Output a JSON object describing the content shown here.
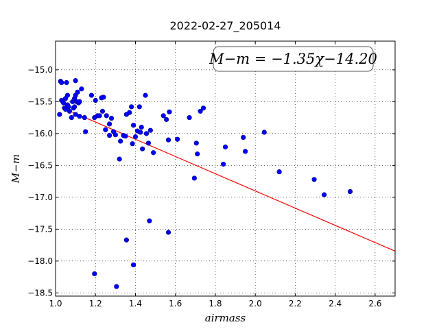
{
  "chart_data": {
    "type": "scatter",
    "title": "2022-02-27_205014",
    "xlabel": "airmass",
    "ylabel": "M−m",
    "xlim": [
      1.0,
      2.7
    ],
    "ylim": [
      -18.55,
      -14.55
    ],
    "y_inverted": true,
    "grid": true,
    "x_ticks": [
      1.0,
      1.2,
      1.4,
      1.6,
      1.8,
      2.0,
      2.2,
      2.4,
      2.6
    ],
    "x_tick_labels": [
      "1.0",
      "1.2",
      "1.4",
      "1.6",
      "1.8",
      "2.0",
      "2.2",
      "2.4",
      "2.6"
    ],
    "y_ticks": [
      -15.0,
      -15.5,
      -16.0,
      -16.5,
      -17.0,
      -17.5,
      -18.0,
      -18.5
    ],
    "y_tick_labels": [
      "−15.0",
      "−15.5",
      "−16.0",
      "−16.5",
      "−17.0",
      "−17.5",
      "−18.0",
      "−18.5"
    ],
    "annotation": "M−m = −1.35χ−14.20",
    "fit": {
      "slope": -1.35,
      "intercept": -14.2,
      "color": "#ff0000"
    },
    "marker_color": "#0000ff",
    "marker_edge_color": "#000080",
    "points": [
      [
        1.02,
        -15.7
      ],
      [
        1.025,
        -15.18
      ],
      [
        1.03,
        -15.2
      ],
      [
        1.03,
        -15.48
      ],
      [
        1.04,
        -15.52
      ],
      [
        1.045,
        -15.6
      ],
      [
        1.05,
        -15.45
      ],
      [
        1.05,
        -15.62
      ],
      [
        1.055,
        -15.2
      ],
      [
        1.06,
        -15.4
      ],
      [
        1.06,
        -15.55
      ],
      [
        1.065,
        -15.58
      ],
      [
        1.07,
        -15.65
      ],
      [
        1.08,
        -15.75
      ],
      [
        1.085,
        -15.5
      ],
      [
        1.09,
        -15.6
      ],
      [
        1.095,
        -15.45
      ],
      [
        1.095,
        -15.58
      ],
      [
        1.1,
        -15.17
      ],
      [
        1.1,
        -15.4
      ],
      [
        1.1,
        -15.7
      ],
      [
        1.105,
        -15.5
      ],
      [
        1.11,
        -15.35
      ],
      [
        1.115,
        -15.52
      ],
      [
        1.12,
        -15.5
      ],
      [
        1.12,
        -15.73
      ],
      [
        1.13,
        -15.3
      ],
      [
        1.145,
        -15.75
      ],
      [
        1.15,
        -15.97
      ],
      [
        1.18,
        -15.4
      ],
      [
        1.195,
        -15.75
      ],
      [
        1.2,
        -15.48
      ],
      [
        1.21,
        -15.72
      ],
      [
        1.22,
        -15.72
      ],
      [
        1.23,
        -15.44
      ],
      [
        1.235,
        -15.65
      ],
      [
        1.24,
        -15.43
      ],
      [
        1.25,
        -15.94
      ],
      [
        1.255,
        -15.72
      ],
      [
        1.27,
        -15.85
      ],
      [
        1.27,
        -16.03
      ],
      [
        1.28,
        -15.76
      ],
      [
        1.29,
        -15.97
      ],
      [
        1.3,
        -16.02
      ],
      [
        1.32,
        -16.4
      ],
      [
        1.325,
        -16.12
      ],
      [
        1.34,
        -16.03
      ],
      [
        1.35,
        -16.04
      ],
      [
        1.355,
        -15.7
      ],
      [
        1.37,
        -15.67
      ],
      [
        1.38,
        -15.58
      ],
      [
        1.385,
        -16.16
      ],
      [
        1.39,
        -15.87
      ],
      [
        1.4,
        -16.05
      ],
      [
        1.41,
        -15.96
      ],
      [
        1.42,
        -15.58
      ],
      [
        1.425,
        -15.98
      ],
      [
        1.43,
        -15.9
      ],
      [
        1.435,
        -16.24
      ],
      [
        1.45,
        -15.4
      ],
      [
        1.455,
        -16.0
      ],
      [
        1.465,
        -16.15
      ],
      [
        1.475,
        -15.95
      ],
      [
        1.49,
        -16.3
      ],
      [
        1.54,
        -15.72
      ],
      [
        1.555,
        -15.78
      ],
      [
        1.565,
        -16.1
      ],
      [
        1.57,
        -15.66
      ],
      [
        1.61,
        -16.09
      ],
      [
        1.67,
        -15.75
      ],
      [
        1.695,
        -16.7
      ],
      [
        1.705,
        -16.15
      ],
      [
        1.71,
        -16.32
      ],
      [
        1.725,
        -15.65
      ],
      [
        1.74,
        -15.6
      ],
      [
        1.84,
        -16.48
      ],
      [
        1.85,
        -16.21
      ],
      [
        1.94,
        -16.06
      ],
      [
        1.95,
        -16.28
      ],
      [
        2.045,
        -15.98
      ],
      [
        2.12,
        -16.6
      ],
      [
        2.295,
        -16.72
      ],
      [
        2.345,
        -16.96
      ],
      [
        2.475,
        -16.91
      ],
      [
        1.355,
        -17.67
      ],
      [
        1.47,
        -17.37
      ],
      [
        1.565,
        -17.55
      ],
      [
        1.39,
        -18.06
      ],
      [
        1.195,
        -18.2
      ],
      [
        1.305,
        -18.4
      ]
    ]
  }
}
